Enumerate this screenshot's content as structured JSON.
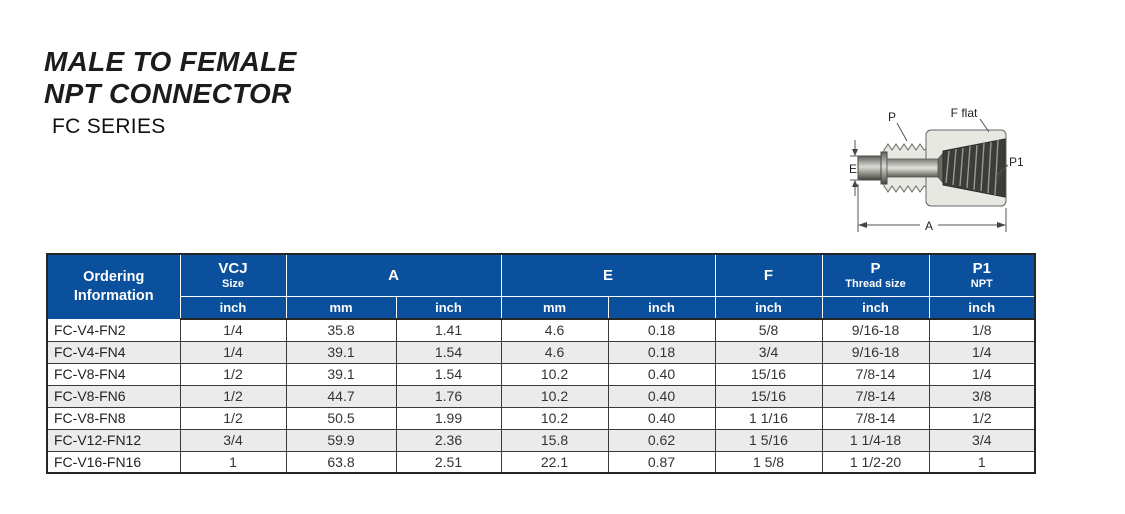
{
  "page": {
    "title_line1": "MALE TO FEMALE",
    "title_line2": "NPT CONNECTOR",
    "series": "FC SERIES"
  },
  "diagram": {
    "labels": {
      "p": "P",
      "f_flat": "F flat",
      "p1": "P1",
      "e": "E",
      "a": "A"
    }
  },
  "colors": {
    "header_blue": "#0a509d",
    "stripe_gray": "#ebebeb",
    "table_border": "#262626"
  },
  "table": {
    "header": {
      "ordering": "Ordering Information",
      "groups": [
        {
          "main": "VCJ",
          "sub": "Size"
        },
        {
          "main": "A"
        },
        {
          "main": "E"
        },
        {
          "main": "F"
        },
        {
          "main": "P",
          "sub": "Thread size"
        },
        {
          "main": "P1",
          "sub": "NPT"
        }
      ],
      "units": [
        "inch",
        "mm",
        "inch",
        "mm",
        "inch",
        "inch",
        "inch",
        "inch"
      ]
    },
    "rows": [
      [
        "FC-V4-FN2",
        "1/4",
        "35.8",
        "1.41",
        "4.6",
        "0.18",
        "5/8",
        "9/16-18",
        "1/8"
      ],
      [
        "FC-V4-FN4",
        "1/4",
        "39.1",
        "1.54",
        "4.6",
        "0.18",
        "3/4",
        "9/16-18",
        "1/4"
      ],
      [
        "FC-V8-FN4",
        "1/2",
        "39.1",
        "1.54",
        "10.2",
        "0.40",
        "15/16",
        "7/8-14",
        "1/4"
      ],
      [
        "FC-V8-FN6",
        "1/2",
        "44.7",
        "1.76",
        "10.2",
        "0.40",
        "15/16",
        "7/8-14",
        "3/8"
      ],
      [
        "FC-V8-FN8",
        "1/2",
        "50.5",
        "1.99",
        "10.2",
        "0.40",
        "1 1/16",
        "7/8-14",
        "1/2"
      ],
      [
        "FC-V12-FN12",
        "3/4",
        "59.9",
        "2.36",
        "15.8",
        "0.62",
        "1 5/16",
        "1 1/4-18",
        "3/4"
      ],
      [
        "FC-V16-FN16",
        "1",
        "63.8",
        "2.51",
        "22.1",
        "0.87",
        "1 5/8",
        "1 1/2-20",
        "1"
      ]
    ]
  }
}
